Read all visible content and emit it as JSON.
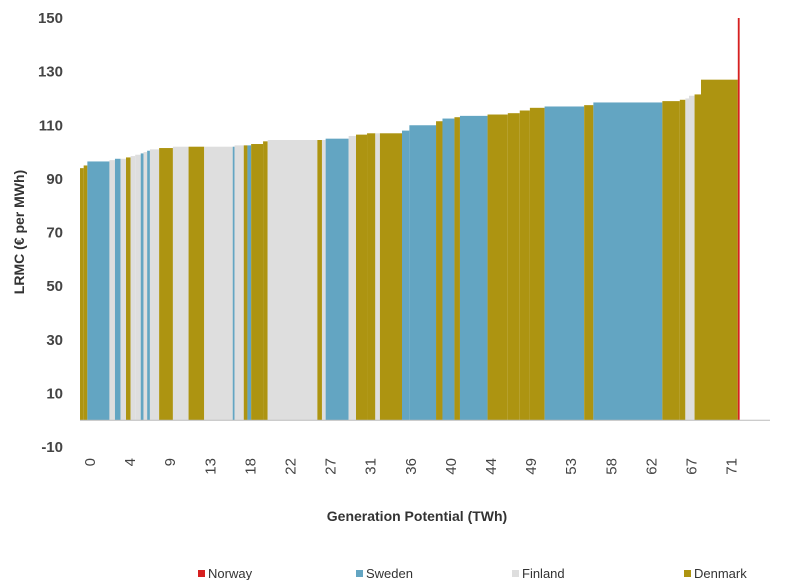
{
  "chart_data": {
    "type": "bar",
    "subtype": "variable-width supply curve",
    "xlabel": "Generation Potential (TWh)",
    "ylabel": "LRMC (€ per MWh)",
    "ylim": [
      -10,
      150
    ],
    "yticks": [
      -10,
      10,
      30,
      50,
      70,
      90,
      110,
      130,
      150
    ],
    "xlim": [
      0,
      75
    ],
    "xtick_labels": [
      "0",
      "4",
      "9",
      "13",
      "18",
      "22",
      "27",
      "31",
      "36",
      "40",
      "44",
      "49",
      "53",
      "58",
      "62",
      "67",
      "71"
    ],
    "grid": false,
    "legend_position": "bottom",
    "colors": {
      "Norway": "#d62020",
      "Sweden": "#63a5c2",
      "Finland": "#dedede",
      "Denmark": "#ad9411"
    },
    "series": [
      {
        "name": "Norway"
      },
      {
        "name": "Sweden"
      },
      {
        "name": "Finland"
      },
      {
        "name": "Denmark"
      }
    ],
    "segments": [
      {
        "series": "Denmark",
        "x0": 0.0,
        "x1": 0.4,
        "y": 94
      },
      {
        "series": "Denmark",
        "x0": 0.4,
        "x1": 0.8,
        "y": 95
      },
      {
        "series": "Sweden",
        "x0": 0.8,
        "x1": 3.2,
        "y": 96.5
      },
      {
        "series": "Finland",
        "x0": 3.2,
        "x1": 3.8,
        "y": 97
      },
      {
        "series": "Sweden",
        "x0": 3.8,
        "x1": 4.4,
        "y": 97.5
      },
      {
        "series": "Finland",
        "x0": 4.4,
        "x1": 5.0,
        "y": 97.5
      },
      {
        "series": "Denmark",
        "x0": 5.0,
        "x1": 5.5,
        "y": 98
      },
      {
        "series": "Finland",
        "x0": 5.5,
        "x1": 6.0,
        "y": 98.5
      },
      {
        "series": "Finland",
        "x0": 6.0,
        "x1": 6.6,
        "y": 99
      },
      {
        "series": "Sweden",
        "x0": 6.6,
        "x1": 6.9,
        "y": 99.5
      },
      {
        "series": "Finland",
        "x0": 6.9,
        "x1": 7.3,
        "y": 100
      },
      {
        "series": "Sweden",
        "x0": 7.3,
        "x1": 7.6,
        "y": 100.5
      },
      {
        "series": "Finland",
        "x0": 7.6,
        "x1": 8.6,
        "y": 101
      },
      {
        "series": "Denmark",
        "x0": 8.6,
        "x1": 10.1,
        "y": 101.5
      },
      {
        "series": "Finland",
        "x0": 10.1,
        "x1": 11.8,
        "y": 102
      },
      {
        "series": "Denmark",
        "x0": 11.8,
        "x1": 13.5,
        "y": 102
      },
      {
        "series": "Finland",
        "x0": 13.5,
        "x1": 16.6,
        "y": 102
      },
      {
        "series": "Sweden",
        "x0": 16.6,
        "x1": 16.8,
        "y": 102
      },
      {
        "series": "Finland",
        "x0": 16.8,
        "x1": 17.8,
        "y": 102.5
      },
      {
        "series": "Denmark",
        "x0": 17.8,
        "x1": 18.2,
        "y": 102.5
      },
      {
        "series": "Sweden",
        "x0": 18.2,
        "x1": 18.6,
        "y": 102.5
      },
      {
        "series": "Denmark",
        "x0": 18.6,
        "x1": 19.9,
        "y": 103
      },
      {
        "series": "Denmark",
        "x0": 19.9,
        "x1": 20.4,
        "y": 104
      },
      {
        "series": "Finland",
        "x0": 20.4,
        "x1": 25.8,
        "y": 104.5
      },
      {
        "series": "Denmark",
        "x0": 25.8,
        "x1": 26.3,
        "y": 104.5
      },
      {
        "series": "Finland",
        "x0": 26.3,
        "x1": 26.7,
        "y": 104.5
      },
      {
        "series": "Sweden",
        "x0": 26.7,
        "x1": 29.2,
        "y": 105
      },
      {
        "series": "Finland",
        "x0": 29.2,
        "x1": 30.0,
        "y": 106
      },
      {
        "series": "Denmark",
        "x0": 30.0,
        "x1": 31.2,
        "y": 106.5
      },
      {
        "series": "Denmark",
        "x0": 31.2,
        "x1": 32.1,
        "y": 107
      },
      {
        "series": "Finland",
        "x0": 32.1,
        "x1": 32.6,
        "y": 107
      },
      {
        "series": "Denmark",
        "x0": 32.6,
        "x1": 35.0,
        "y": 107
      },
      {
        "series": "Sweden",
        "x0": 35.0,
        "x1": 35.8,
        "y": 108
      },
      {
        "series": "Sweden",
        "x0": 35.8,
        "x1": 38.7,
        "y": 110
      },
      {
        "series": "Denmark",
        "x0": 38.7,
        "x1": 39.4,
        "y": 111.5
      },
      {
        "series": "Sweden",
        "x0": 39.4,
        "x1": 40.7,
        "y": 112.5
      },
      {
        "series": "Denmark",
        "x0": 40.7,
        "x1": 41.3,
        "y": 113
      },
      {
        "series": "Sweden",
        "x0": 41.3,
        "x1": 44.3,
        "y": 113.5
      },
      {
        "series": "Denmark",
        "x0": 44.3,
        "x1": 46.5,
        "y": 114
      },
      {
        "series": "Denmark",
        "x0": 46.5,
        "x1": 47.8,
        "y": 114.5
      },
      {
        "series": "Denmark",
        "x0": 47.8,
        "x1": 48.9,
        "y": 115.5
      },
      {
        "series": "Denmark",
        "x0": 48.9,
        "x1": 50.5,
        "y": 116.5
      },
      {
        "series": "Sweden",
        "x0": 50.5,
        "x1": 54.8,
        "y": 117
      },
      {
        "series": "Denmark",
        "x0": 54.8,
        "x1": 55.8,
        "y": 117.5
      },
      {
        "series": "Sweden",
        "x0": 55.8,
        "x1": 63.3,
        "y": 118.5
      },
      {
        "series": "Denmark",
        "x0": 63.3,
        "x1": 65.2,
        "y": 119
      },
      {
        "series": "Denmark",
        "x0": 65.2,
        "x1": 65.8,
        "y": 119.5
      },
      {
        "series": "Finland",
        "x0": 65.8,
        "x1": 66.2,
        "y": 120
      },
      {
        "series": "Finland",
        "x0": 66.2,
        "x1": 66.8,
        "y": 121
      },
      {
        "series": "Denmark",
        "x0": 66.8,
        "x1": 67.5,
        "y": 121.5
      },
      {
        "series": "Denmark",
        "x0": 67.5,
        "x1": 71.5,
        "y": 127
      },
      {
        "series": "Norway",
        "x0": 71.5,
        "x1": 71.7,
        "y": 150
      }
    ]
  }
}
